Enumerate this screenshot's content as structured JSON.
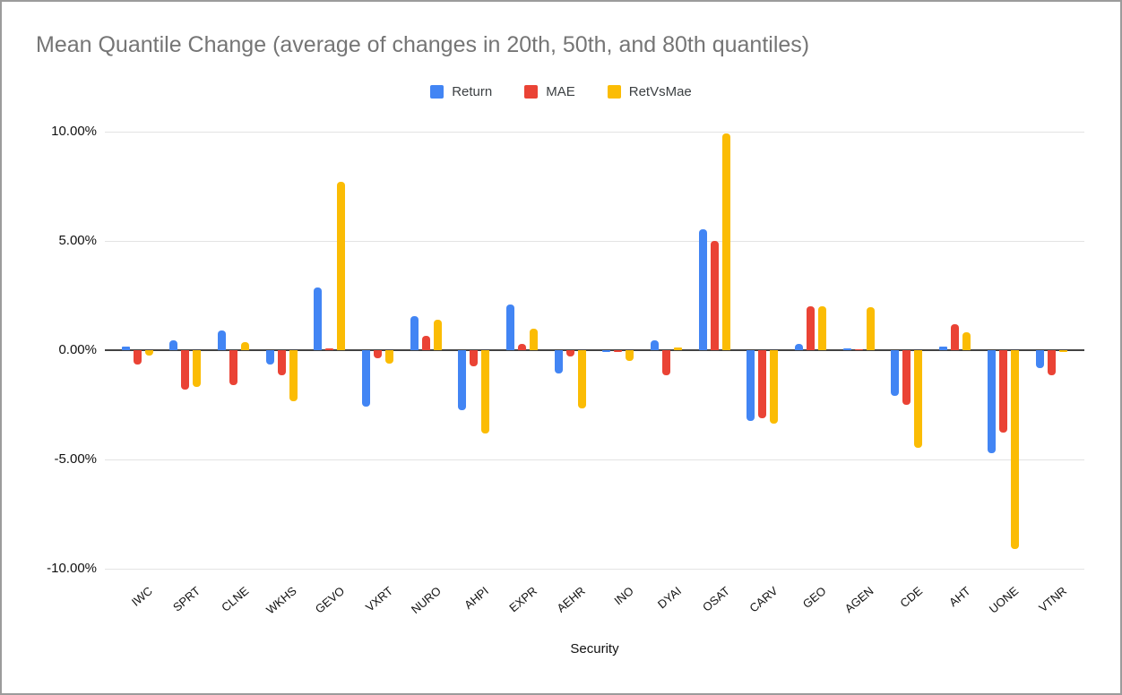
{
  "chart_data": {
    "type": "bar",
    "title": "Mean Quantile Change (average of changes in 20th, 50th, and 80th quantiles)",
    "xlabel": "Security",
    "ylabel": "",
    "unit": "%",
    "categories": [
      "IWC",
      "SPRT",
      "CLNE",
      "WKHS",
      "GEVO",
      "VXRT",
      "NURO",
      "AHPI",
      "EXPR",
      "AEHR",
      "INO",
      "DYAI",
      "OSAT",
      "CARV",
      "GEO",
      "AGEN",
      "CDE",
      "AHT",
      "UONE",
      "VTNR"
    ],
    "series": [
      {
        "name": "Return",
        "color": "#4285F4",
        "values": [
          0.15,
          0.45,
          0.9,
          -0.65,
          2.85,
          -2.6,
          1.55,
          -2.75,
          2.1,
          -1.05,
          -0.05,
          0.45,
          5.55,
          -3.25,
          0.3,
          0.1,
          -2.1,
          0.15,
          -4.7,
          -0.8
        ]
      },
      {
        "name": "MAE",
        "color": "#EA4335",
        "values": [
          -0.65,
          -1.8,
          -1.6,
          -1.15,
          0.1,
          -0.35,
          0.65,
          -0.75,
          0.3,
          -0.3,
          -0.05,
          -1.15,
          5.0,
          -3.1,
          2.0,
          0.05,
          -2.5,
          1.2,
          -3.75,
          -1.15
        ]
      },
      {
        "name": "RetVsMae",
        "color": "#FBBC04",
        "values": [
          -0.25,
          -1.7,
          0.35,
          -2.35,
          7.7,
          -0.6,
          1.4,
          -3.8,
          1.0,
          -2.65,
          -0.5,
          0.12,
          9.9,
          -3.35,
          2.0,
          1.95,
          -4.45,
          0.8,
          -9.1,
          -0.1
        ]
      }
    ],
    "ylim": [
      -10,
      10
    ],
    "yticks": [
      10,
      5,
      0,
      -5,
      -10
    ],
    "ytick_labels": [
      "10.00%",
      "5.00%",
      "0.00%",
      "-5.00%",
      "-10.00%"
    ],
    "grid": true,
    "legend_position": "top"
  }
}
